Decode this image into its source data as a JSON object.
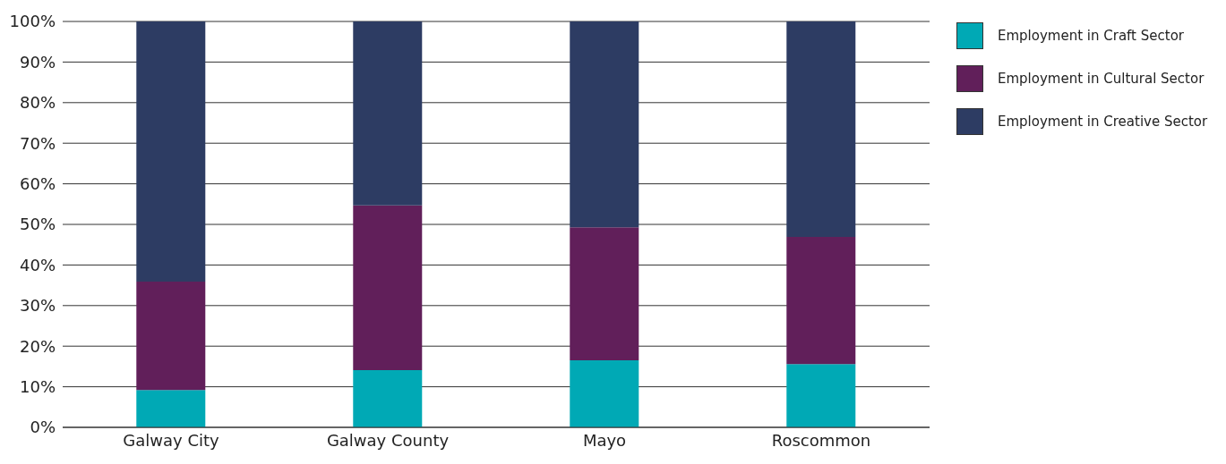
{
  "chart_data": {
    "type": "bar",
    "stacked": true,
    "categories": [
      "Galway City",
      "Galway County",
      "Mayo",
      "Roscommon"
    ],
    "series": [
      {
        "name": "Employment in Craft Sector",
        "color": "#00a9b5",
        "values": [
          9.2,
          14.1,
          16.5,
          15.6
        ]
      },
      {
        "name": "Employment in Cultural Sector",
        "color": "#611f5a",
        "values": [
          26.7,
          40.6,
          32.8,
          31.3
        ]
      },
      {
        "name": "Employment in Creative Sector",
        "color": "#2d3c63",
        "values": [
          64.1,
          45.3,
          50.7,
          53.1
        ]
      }
    ],
    "ylim": [
      0,
      100
    ],
    "yticks": [
      {
        "value": 0,
        "label": "0%"
      },
      {
        "value": 10,
        "label": "10%"
      },
      {
        "value": 20,
        "label": "20%"
      },
      {
        "value": 30,
        "label": "30%"
      },
      {
        "value": 40,
        "label": "40%"
      },
      {
        "value": 50,
        "label": "50%"
      },
      {
        "value": 60,
        "label": "60%"
      },
      {
        "value": 70,
        "label": "70%"
      },
      {
        "value": 80,
        "label": "80%"
      },
      {
        "value": 90,
        "label": "90%"
      },
      {
        "value": 100,
        "label": "100%"
      }
    ],
    "grid": "y",
    "legend": "top right"
  }
}
